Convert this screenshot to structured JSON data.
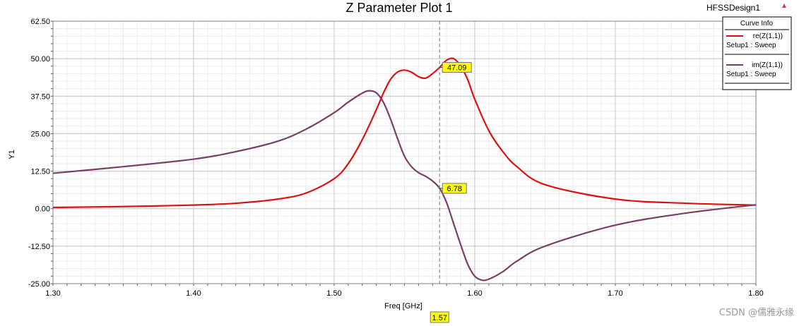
{
  "window": {
    "design_name": "HFSSDesign1",
    "watermark": "CSDN @儒雅永缘"
  },
  "legend": {
    "title": "Curve Info",
    "entries": [
      {
        "name": "re(Z(1,1))",
        "sub": "Setup1 : Sweep",
        "color": "#e01010"
      },
      {
        "name": "im(Z(1,1))",
        "sub": "Setup1 : Sweep",
        "color": "#7b3f66"
      }
    ]
  },
  "markers": {
    "x_value": 1.575,
    "x_label": "1.57",
    "labels": [
      {
        "series": "re(Z(1,1))",
        "text": "47.09",
        "y": 47.09
      },
      {
        "series": "im(Z(1,1))",
        "text": "6.78",
        "y": 6.78
      }
    ],
    "label_color": "#ffff00"
  },
  "chart_data": {
    "type": "line",
    "title": "Z Parameter Plot 1",
    "xlabel": "Freq [GHz]",
    "ylabel": "Y1",
    "xlim": [
      1.3,
      1.8
    ],
    "ylim": [
      -25.0,
      62.5
    ],
    "x_ticks": [
      "1.30",
      "1.40",
      "1.50",
      "1.60",
      "1.70",
      "1.80"
    ],
    "y_ticks": [
      "62.50",
      "50.00",
      "37.50",
      "25.00",
      "12.50",
      "0.00",
      "-12.50",
      "-25.00"
    ],
    "grid": true,
    "legend_position": "top-right",
    "series": [
      {
        "name": "re(Z(1,1))",
        "color": "#e01010",
        "x": [
          1.3,
          1.35,
          1.4,
          1.43,
          1.46,
          1.48,
          1.5,
          1.51,
          1.52,
          1.53,
          1.535,
          1.54,
          1.545,
          1.55,
          1.555,
          1.56,
          1.565,
          1.57,
          1.575,
          1.58,
          1.585,
          1.59,
          1.595,
          1.6,
          1.61,
          1.62,
          1.63,
          1.65,
          1.7,
          1.75,
          1.8
        ],
        "y": [
          0.4,
          0.7,
          1.2,
          1.8,
          3.2,
          5.2,
          10.0,
          15.0,
          23.0,
          33.0,
          38.5,
          43.0,
          45.5,
          46.2,
          45.5,
          44.0,
          43.5,
          45.0,
          47.1,
          49.5,
          50.0,
          47.5,
          43.0,
          36.5,
          26.0,
          19.0,
          14.0,
          8.0,
          3.2,
          1.8,
          1.2
        ]
      },
      {
        "name": "im(Z(1,1))",
        "color": "#7b3f66",
        "x": [
          1.3,
          1.35,
          1.4,
          1.43,
          1.46,
          1.48,
          1.5,
          1.51,
          1.52,
          1.525,
          1.53,
          1.535,
          1.54,
          1.545,
          1.55,
          1.555,
          1.56,
          1.565,
          1.57,
          1.575,
          1.58,
          1.585,
          1.59,
          1.595,
          1.6,
          1.605,
          1.61,
          1.62,
          1.63,
          1.65,
          1.7,
          1.75,
          1.8
        ],
        "y": [
          11.8,
          14.0,
          16.5,
          19.0,
          22.5,
          26.5,
          32.0,
          35.5,
          38.5,
          39.3,
          38.6,
          35.5,
          30.0,
          23.5,
          17.5,
          14.0,
          12.0,
          10.8,
          9.2,
          6.8,
          2.0,
          -5.0,
          -12.0,
          -18.5,
          -22.5,
          -23.8,
          -23.5,
          -21.0,
          -17.5,
          -12.5,
          -5.5,
          -1.5,
          1.3
        ]
      }
    ]
  }
}
